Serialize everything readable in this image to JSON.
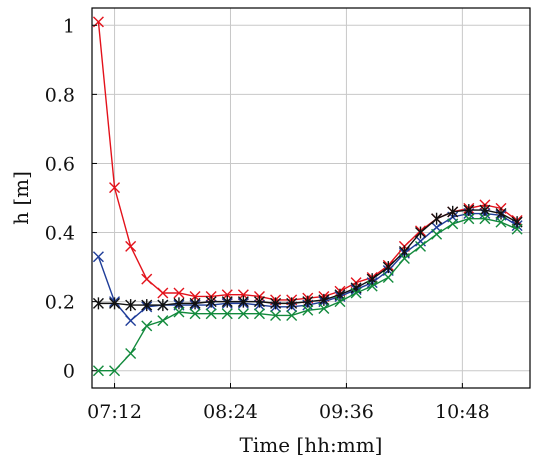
{
  "chart_data": {
    "type": "line",
    "title": "",
    "xlabel": "Time [hh:mm]",
    "ylabel": "h [m]",
    "x_unit": "time (hh:mm)",
    "xlim": [
      "06:58",
      "11:30"
    ],
    "ylim": [
      -0.05,
      1.05
    ],
    "x_ticks": [
      "07:12",
      "08:24",
      "09:36",
      "10:48"
    ],
    "y_ticks": [
      0,
      0.2,
      0.4,
      0.6,
      0.8,
      1
    ],
    "y_tick_labels": [
      "0",
      "0.2",
      "0.4",
      "0.6",
      "0.8",
      "1"
    ],
    "grid": true,
    "legend": "none",
    "x": [
      "07:02",
      "07:12",
      "07:22",
      "07:32",
      "07:42",
      "07:52",
      "08:02",
      "08:12",
      "08:22",
      "08:32",
      "08:42",
      "08:52",
      "09:02",
      "09:12",
      "09:22",
      "09:32",
      "09:42",
      "09:52",
      "10:02",
      "10:12",
      "10:22",
      "10:32",
      "10:42",
      "10:52",
      "11:02",
      "11:12",
      "11:22"
    ],
    "series": [
      {
        "color": "#e3121b",
        "marker": "x",
        "values": [
          1.01,
          0.53,
          0.36,
          0.265,
          0.225,
          0.225,
          0.215,
          0.215,
          0.22,
          0.22,
          0.215,
          0.205,
          0.205,
          0.21,
          0.215,
          0.23,
          0.255,
          0.27,
          0.305,
          0.36,
          0.405,
          0.44,
          0.46,
          0.47,
          0.48,
          0.47,
          0.435
        ]
      },
      {
        "color": "#1f3d99",
        "marker": "x",
        "values": [
          0.33,
          0.2,
          0.145,
          0.185,
          0.19,
          0.19,
          0.19,
          0.19,
          0.195,
          0.195,
          0.19,
          0.185,
          0.185,
          0.19,
          0.2,
          0.215,
          0.235,
          0.255,
          0.29,
          0.34,
          0.375,
          0.415,
          0.445,
          0.455,
          0.455,
          0.45,
          0.42
        ]
      },
      {
        "color": "#111111",
        "marker": "asterisk",
        "values": [
          0.195,
          0.195,
          0.19,
          0.19,
          0.19,
          0.195,
          0.195,
          0.2,
          0.2,
          0.2,
          0.2,
          0.195,
          0.195,
          0.2,
          0.205,
          0.22,
          0.24,
          0.265,
          0.3,
          0.345,
          0.4,
          0.44,
          0.46,
          0.465,
          0.465,
          0.455,
          0.43
        ]
      },
      {
        "color": "#128a3c",
        "marker": "x",
        "values": [
          0.0,
          0.0,
          0.05,
          0.13,
          0.145,
          0.17,
          0.165,
          0.165,
          0.165,
          0.165,
          0.165,
          0.16,
          0.16,
          0.175,
          0.18,
          0.2,
          0.225,
          0.245,
          0.27,
          0.325,
          0.36,
          0.395,
          0.425,
          0.44,
          0.44,
          0.43,
          0.41
        ]
      }
    ]
  }
}
